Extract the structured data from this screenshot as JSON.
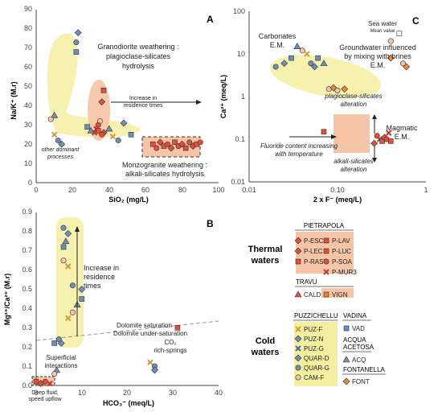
{
  "panels": {
    "A": {
      "letter": "A",
      "xlabel": "SiO₂ (mg/L)",
      "ylabel": "Na/K⁺ (M.r)",
      "xticks": [
        "0",
        "20",
        "40",
        "60",
        "80",
        "100"
      ],
      "yticks": [
        "0",
        "10",
        "20",
        "30",
        "40",
        "50",
        "60",
        "70",
        "80",
        "90"
      ],
      "texts": {
        "granodiorite1": "Granodiorite weathering :",
        "granodiorite2": "plagioclase-silicates",
        "granodiorite3": "hydrolysis",
        "increase1": "Increase in",
        "increase2": "residence times",
        "other1": "other dominant",
        "other2": "processes",
        "monzo1": "Monzogranite weathering :",
        "monzo2": "alkali-silicates hydrolysis"
      }
    },
    "B": {
      "letter": "B",
      "xlabel": "HCO₃⁻ (meq/L)",
      "ylabel": "Mg²⁺/Ca²⁺ (M.r)",
      "xticks": [
        "0",
        "10",
        "20",
        "30",
        "40"
      ],
      "yticks": [
        "0.0",
        "0.1",
        "0.2",
        "0.3",
        "0.4",
        "0.5",
        "0.6",
        "0.7",
        "0.8",
        "0.9"
      ],
      "texts": {
        "increase1": "Increase in",
        "increase2": "residence",
        "increase3": "times",
        "dolsat": "Dolomite saturation",
        "dolunder": "Dolomite under-saturation",
        "co2a": "CO₂",
        "co2b": "rich-springs",
        "superf1": "Superficial",
        "superf2": "interactions",
        "deep1": "Deep fluid,",
        "deep2": "speed upflow"
      }
    },
    "C": {
      "letter": "C",
      "xlabel": "2 x F⁻ (meq/L)",
      "ylabel": "Ca²⁺ (meq/L)",
      "xticks": [
        "0.01",
        "0.10",
        "1"
      ],
      "yticks": [
        "0.01",
        "0.1",
        "1",
        "10",
        "100"
      ],
      "texts": {
        "carb1": "Carbonates",
        "carb2": "E.M.",
        "sea1": "Sea water",
        "sea2": "Mean value",
        "gw1": "Groundwater influenced",
        "gw2": "by mixing with brines",
        "gw3": "E.M.",
        "plag1": "plagioclase-silicates",
        "plag2": "alteration",
        "magm1": "Magmatic",
        "magm2": "E.M.",
        "fluor1": "Fluoride content increasing",
        "fluor2": "with temperature",
        "alk1": "alkali-silicates",
        "alk2": "alteration"
      }
    }
  },
  "legend": {
    "thermal_title1": "Thermal",
    "thermal_title2": "waters",
    "cold_title1": "Cold",
    "cold_title2": "waters",
    "pietrapola": "PIETRAPOLA",
    "travu": "TRAVU",
    "puzzichellu": "PUZZICHELLU",
    "vadina": "VADINA",
    "acqua_acetosa1": "ACQUA",
    "acqua_acetosa2": "ACETOSA",
    "fontanella": "FONTANELLA",
    "p_esc": "P-ESC",
    "p_lav": "P-LAV",
    "p_lec": "P-LEC",
    "p_luc": "P-LUC",
    "p_rast": "P-RAST",
    "p_soa": "P-SOA",
    "p_mur3": "P-MUR3",
    "cald": "CALD",
    "vign": "VIGN",
    "puz_f": "PUZ-F",
    "puz_n": "PUZ-N",
    "puz_g": "PUZ-G",
    "quar_d": "QUAR-D",
    "quar_g": "QUAR-G",
    "cam_f": "CAM-F",
    "vad": "VAD",
    "acq": "ACQ",
    "font": "FONT"
  },
  "colors": {
    "thermal": "#e0503a",
    "cold_blue": "#6f8fb8",
    "highlight": "#f4efa0",
    "peach": "#f6c4a6",
    "orange": "#e08a3a"
  },
  "chart_data": [
    {
      "type": "scatter",
      "panel": "A",
      "xlabel": "SiO₂ (mg/L)",
      "ylabel": "Na/K⁺ (M.r)",
      "xlim": [
        0,
        100
      ],
      "ylim": [
        0,
        90
      ],
      "series": [
        {
          "group": "cold",
          "points": [
            [
              22,
              73
            ],
            [
              23,
              78
            ],
            [
              22,
              68
            ],
            [
              10,
              35
            ],
            [
              8,
              33
            ],
            [
              10,
              25
            ],
            [
              12,
              22
            ],
            [
              14,
              20
            ],
            [
              28,
              29
            ],
            [
              30,
              27
            ],
            [
              35,
              32
            ],
            [
              42,
              24
            ],
            [
              45,
              22
            ],
            [
              48,
              31
            ],
            [
              52,
              25
            ],
            [
              40,
              28
            ]
          ]
        },
        {
          "group": "thermal",
          "points": [
            [
              37,
              48
            ],
            [
              36,
              42
            ],
            [
              34,
              30
            ],
            [
              33,
              28
            ],
            [
              34,
              27
            ],
            [
              37,
              26
            ],
            [
              36,
              25
            ],
            [
              32,
              26
            ]
          ]
        },
        {
          "group": "thermal-monzo",
          "points": [
            [
              64,
              20
            ],
            [
              66,
              18
            ],
            [
              68,
              21
            ],
            [
              70,
              19
            ],
            [
              72,
              20
            ],
            [
              74,
              18
            ],
            [
              76,
              21
            ],
            [
              78,
              19
            ],
            [
              80,
              20
            ],
            [
              82,
              18
            ],
            [
              84,
              21
            ],
            [
              86,
              19
            ],
            [
              88,
              20
            ],
            [
              90,
              21
            ]
          ]
        }
      ]
    },
    {
      "type": "scatter",
      "panel": "B",
      "xlabel": "HCO₃⁻ (meq/L)",
      "ylabel": "Mg²⁺/Ca²⁺ (M.r)",
      "xlim": [
        0,
        40
      ],
      "ylim": [
        0,
        0.9
      ],
      "series": [
        {
          "group": "cold",
          "points": [
            [
              6,
              0.82
            ],
            [
              7,
              0.79
            ],
            [
              6,
              0.72
            ],
            [
              6.5,
              0.75
            ],
            [
              6,
              0.65
            ],
            [
              7,
              0.62
            ],
            [
              8,
              0.52
            ],
            [
              10,
              0.5
            ],
            [
              10,
              0.45
            ],
            [
              9,
              0.42
            ],
            [
              8,
              0.38
            ],
            [
              7,
              0.35
            ],
            [
              5,
              0.24
            ],
            [
              5.5,
              0.22
            ],
            [
              4,
              0.22
            ],
            [
              4.5,
              0.08
            ],
            [
              4,
              0.06
            ],
            [
              25,
              0.12
            ],
            [
              26,
              0.1
            ],
            [
              26,
              0.08
            ]
          ]
        },
        {
          "group": "thermal",
          "points": [
            [
              0,
              0.02
            ],
            [
              1,
              0.01
            ],
            [
              2,
              0.02
            ],
            [
              3,
              0.01
            ],
            [
              31,
              0.3
            ]
          ]
        }
      ]
    },
    {
      "type": "scatter",
      "panel": "C",
      "xlabel": "2 x F⁻ (meq/L)",
      "ylabel": "Ca²⁺ (meq/L)",
      "xscale": "log",
      "yscale": "log",
      "xlim": [
        0.01,
        1
      ],
      "ylim": [
        0.01,
        100
      ],
      "series": [
        {
          "group": "cold",
          "points": [
            [
              0.02,
              5
            ],
            [
              0.025,
              6
            ],
            [
              0.03,
              8
            ],
            [
              0.035,
              15
            ],
            [
              0.04,
              12
            ],
            [
              0.045,
              10
            ],
            [
              0.05,
              6
            ],
            [
              0.055,
              5
            ],
            [
              0.06,
              8
            ],
            [
              0.07,
              6
            ]
          ]
        },
        {
          "group": "fontanella",
          "points": [
            [
              0.08,
              1.5
            ],
            [
              0.09,
              1.6
            ],
            [
              0.1,
              1.4
            ],
            [
              0.12,
              1.5
            ],
            [
              0.4,
              20
            ],
            [
              0.4,
              8
            ],
            [
              0.55,
              6
            ],
            [
              0.6,
              5
            ]
          ]
        },
        {
          "group": "sea-water",
          "points": [
            [
              0.5,
              30
            ]
          ]
        },
        {
          "group": "thermal",
          "points": [
            [
              0.07,
              0.15
            ],
            [
              0.26,
              0.08
            ],
            [
              0.28,
              0.12
            ],
            [
              0.3,
              0.1
            ],
            [
              0.32,
              0.09
            ],
            [
              0.34,
              0.11
            ],
            [
              0.36,
              0.1
            ],
            [
              0.38,
              0.14
            ],
            [
              0.4,
              0.09
            ]
          ]
        }
      ]
    }
  ]
}
